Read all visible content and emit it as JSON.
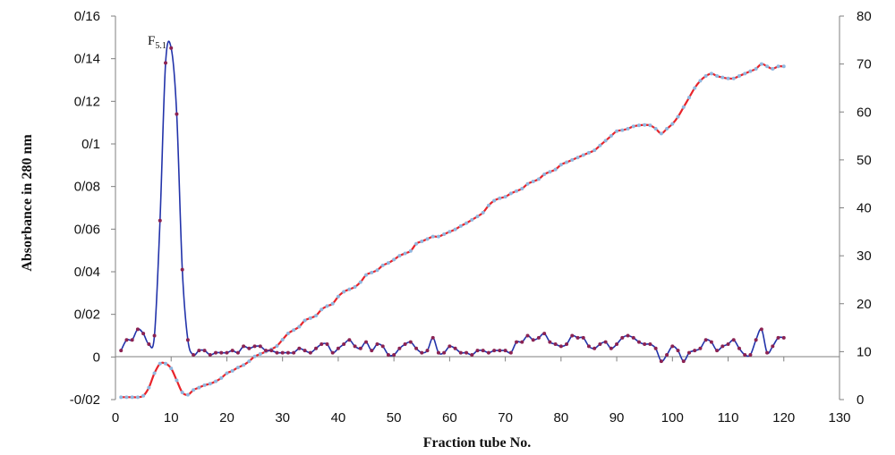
{
  "chart_data": {
    "type": "line",
    "xlabel": "Fraction tube No.",
    "ylabel": "Absorbance in 280 nm",
    "x_ticks": [
      "0",
      "10",
      "20",
      "30",
      "40",
      "50",
      "60",
      "70",
      "80",
      "90",
      "100",
      "110",
      "120",
      "130"
    ],
    "y_left_ticks": [
      "-0/02",
      "0",
      "0/02",
      "0/04",
      "0/06",
      "0/08",
      "0/1",
      "0/12",
      "0/14",
      "0/16"
    ],
    "y_right_ticks": [
      "0",
      "10",
      "20",
      "30",
      "40",
      "50",
      "60",
      "70",
      "80"
    ],
    "xlim": [
      0,
      130
    ],
    "ylim_left": [
      -0.02,
      0.16
    ],
    "ylim_right": [
      0,
      80
    ],
    "peak_label": {
      "base": "F",
      "sub": "5.1",
      "x": 10,
      "y": 0.145
    },
    "series": [
      {
        "axis": "left",
        "color": "#2233aa",
        "marker_color": "#8b2252",
        "x": [
          1,
          2,
          3,
          4,
          5,
          6,
          7,
          8,
          9,
          10,
          11,
          12,
          13,
          14,
          15,
          16,
          17,
          18,
          19,
          20,
          21,
          22,
          23,
          24,
          25,
          26,
          27,
          28,
          29,
          30,
          31,
          32,
          33,
          34,
          35,
          36,
          37,
          38,
          39,
          40,
          41,
          42,
          43,
          44,
          45,
          46,
          47,
          48,
          49,
          50,
          51,
          52,
          53,
          54,
          55,
          56,
          57,
          58,
          59,
          60,
          61,
          62,
          63,
          64,
          65,
          66,
          67,
          68,
          69,
          70,
          71,
          72,
          73,
          74,
          75,
          76,
          77,
          78,
          79,
          80,
          81,
          82,
          83,
          84,
          85,
          86,
          87,
          88,
          89,
          90,
          91,
          92,
          93,
          94,
          95,
          96,
          97,
          98,
          99,
          100,
          101,
          102,
          103,
          104,
          105,
          106,
          107,
          108,
          109,
          110,
          111,
          112,
          113,
          114,
          115,
          116,
          117,
          118,
          119,
          120
        ],
        "values": [
          0.003,
          0.008,
          0.008,
          0.013,
          0.011,
          0.006,
          0.01,
          0.064,
          0.138,
          0.145,
          0.114,
          0.041,
          0.008,
          0.001,
          0.003,
          0.003,
          0.001,
          0.002,
          0.002,
          0.002,
          0.003,
          0.002,
          0.005,
          0.004,
          0.005,
          0.005,
          0.003,
          0.003,
          0.002,
          0.002,
          0.002,
          0.002,
          0.004,
          0.003,
          0.002,
          0.004,
          0.006,
          0.006,
          0.002,
          0.004,
          0.006,
          0.008,
          0.005,
          0.004,
          0.007,
          0.003,
          0.006,
          0.005,
          0.001,
          0.001,
          0.004,
          0.006,
          0.007,
          0.004,
          0.002,
          0.003,
          0.009,
          0.002,
          0.002,
          0.005,
          0.004,
          0.002,
          0.002,
          0.001,
          0.003,
          0.003,
          0.002,
          0.003,
          0.003,
          0.003,
          0.002,
          0.007,
          0.007,
          0.01,
          0.008,
          0.009,
          0.011,
          0.007,
          0.006,
          0.005,
          0.006,
          0.01,
          0.009,
          0.009,
          0.005,
          0.004,
          0.006,
          0.007,
          0.004,
          0.006,
          0.009,
          0.01,
          0.009,
          0.007,
          0.006,
          0.006,
          0.004,
          -0.002,
          0.001,
          0.005,
          0.003,
          -0.002,
          0.002,
          0.003,
          0.004,
          0.008,
          0.007,
          0.003,
          0.005,
          0.006,
          0.008,
          0.004,
          0.001,
          0.001,
          0.008,
          0.013,
          0.002,
          0.005,
          0.009,
          0.009
        ]
      },
      {
        "axis": "right",
        "color": "#e8232a",
        "marker_color": "#8fb8e0",
        "x": [
          1,
          2,
          3,
          4,
          5,
          6,
          7,
          8,
          9,
          10,
          11,
          12,
          13,
          14,
          15,
          16,
          17,
          18,
          19,
          20,
          21,
          22,
          23,
          24,
          25,
          26,
          27,
          28,
          29,
          30,
          31,
          32,
          33,
          34,
          35,
          36,
          37,
          38,
          39,
          40,
          41,
          42,
          43,
          44,
          45,
          46,
          47,
          48,
          49,
          50,
          51,
          52,
          53,
          54,
          55,
          56,
          57,
          58,
          59,
          60,
          61,
          62,
          63,
          64,
          65,
          66,
          67,
          68,
          69,
          70,
          71,
          72,
          73,
          74,
          75,
          76,
          77,
          78,
          79,
          80,
          81,
          82,
          83,
          84,
          85,
          86,
          87,
          88,
          89,
          90,
          91,
          92,
          93,
          94,
          95,
          96,
          97,
          98,
          99,
          100,
          101,
          102,
          103,
          104,
          105,
          106,
          107,
          108,
          109,
          110,
          111,
          112,
          113,
          114,
          115,
          116,
          117,
          118,
          119,
          120
        ],
        "values": [
          0.5,
          0.5,
          0.5,
          0.5,
          0.8,
          2.5,
          5.5,
          7.5,
          7.5,
          6.5,
          4,
          1.5,
          1,
          2,
          2.5,
          3,
          3.3,
          3.8,
          4.5,
          5.5,
          6,
          6.7,
          7.2,
          8,
          9,
          9.5,
          10,
          10.5,
          11.2,
          12.5,
          13.8,
          14.5,
          15.2,
          16.5,
          17,
          17.5,
          18.8,
          19.5,
          20,
          21.5,
          22.5,
          23,
          23.5,
          24.5,
          26,
          26.5,
          27,
          28,
          28.5,
          29.2,
          30,
          30.5,
          31,
          32.5,
          33,
          33.5,
          34,
          34,
          34.5,
          35,
          35.5,
          36.2,
          36.8,
          37.5,
          38.2,
          39,
          40.5,
          41.5,
          42,
          42.3,
          43,
          43.5,
          44,
          45,
          45.5,
          46,
          47,
          47.5,
          48,
          49,
          49.5,
          50,
          50.5,
          51,
          51.5,
          52,
          53,
          54,
          55,
          56,
          56.2,
          56.5,
          57,
          57.2,
          57.3,
          57.2,
          56.5,
          55.5,
          56.5,
          57.5,
          59,
          61,
          63,
          65,
          66.5,
          67.5,
          68,
          67.5,
          67.2,
          67,
          67,
          67.5,
          68,
          68.5,
          69,
          70,
          69.5,
          69,
          69.5,
          69.5
        ]
      }
    ]
  }
}
